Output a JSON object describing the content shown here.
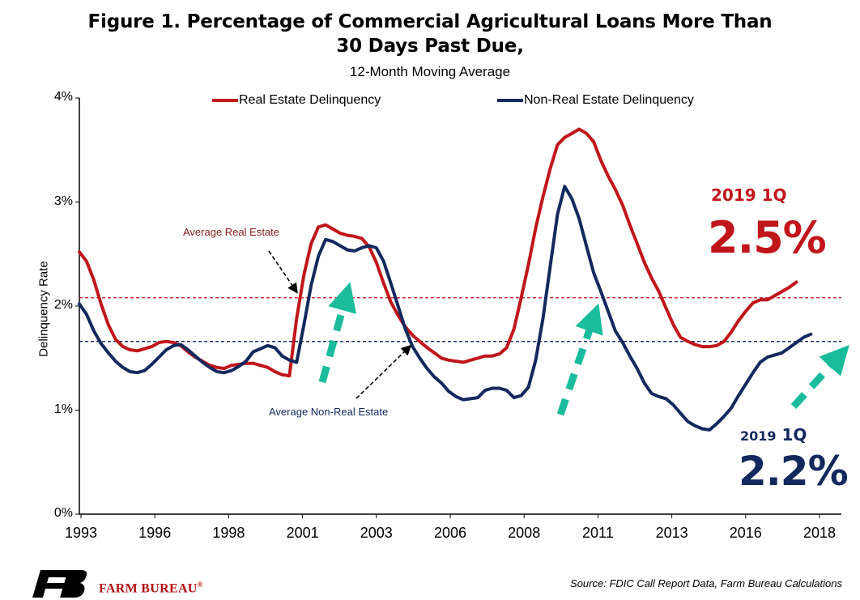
{
  "title_line1": "Figure 1. Percentage of Commercial Agricultural Loans More Than",
  "title_line2": "30 Days Past Due,",
  "subtitle": "12-Month Moving Average",
  "ylabel": "Delinquency Rate",
  "source": "Source: FDIC Call Report Data, Farm Bureau Calculations",
  "brand": {
    "name": "FARM BUREAU",
    "registered": "®",
    "logo_text": "FB",
    "logo_color": "#000000",
    "name_color": "#b30c13"
  },
  "annotations": {
    "avg_real_estate": "Average Real Estate",
    "avg_non_real_estate": "Average Non-Real Estate",
    "re_period": "2019 1Q",
    "re_value": "2.5%",
    "nre_period_year": "2019",
    "nre_period_q": "1Q",
    "nre_value": "2.2%"
  },
  "colors": {
    "real_estate": "#c0161b",
    "non_real_estate": "#13295e",
    "arrows": "#1abc9c"
  },
  "chart_data": {
    "type": "line",
    "title": "Figure 1. Percentage of Commercial Agricultural Loans More Than 30 Days Past Due,",
    "subtitle": "12-Month Moving Average",
    "xlabel": "",
    "ylabel": "Delinquency Rate",
    "x_tick_labels": [
      "1993",
      "1996",
      "1998",
      "2001",
      "2003",
      "2006",
      "2008",
      "2011",
      "2013",
      "2016",
      "2018"
    ],
    "y_tick_labels": [
      "0%",
      "1%",
      "2%",
      "3%",
      "4%"
    ],
    "ylim": [
      0,
      4
    ],
    "xlim": [
      1993.0,
      2019.3
    ],
    "legend_position": "top",
    "grid": false,
    "reference_lines": [
      {
        "label": "Average Real Estate",
        "value": 2.08,
        "style": "dashed",
        "color": "#c0161b"
      },
      {
        "label": "Average Non-Real Estate",
        "value": 1.66,
        "style": "dashed",
        "color": "#13295e"
      }
    ],
    "series": [
      {
        "name": "Real Estate Delinquency",
        "color": "#c0161b",
        "points": [
          [
            1993.0,
            2.52
          ],
          [
            1993.25,
            2.43
          ],
          [
            1993.5,
            2.25
          ],
          [
            1993.75,
            2.02
          ],
          [
            1994.0,
            1.82
          ],
          [
            1994.25,
            1.68
          ],
          [
            1994.5,
            1.61
          ],
          [
            1994.75,
            1.58
          ],
          [
            1995.0,
            1.57
          ],
          [
            1995.25,
            1.59
          ],
          [
            1995.5,
            1.61
          ],
          [
            1995.75,
            1.65
          ],
          [
            1996.0,
            1.66
          ],
          [
            1996.25,
            1.65
          ],
          [
            1996.5,
            1.62
          ],
          [
            1996.75,
            1.56
          ],
          [
            1997.0,
            1.51
          ],
          [
            1997.25,
            1.47
          ],
          [
            1997.5,
            1.43
          ],
          [
            1997.75,
            1.41
          ],
          [
            1998.0,
            1.4
          ],
          [
            1998.25,
            1.43
          ],
          [
            1998.5,
            1.44
          ],
          [
            1998.75,
            1.45
          ],
          [
            1999.0,
            1.45
          ],
          [
            1999.25,
            1.43
          ],
          [
            1999.5,
            1.41
          ],
          [
            1999.75,
            1.37
          ],
          [
            2000.0,
            1.34
          ],
          [
            2000.25,
            1.33
          ],
          [
            2000.5,
            1.88
          ],
          [
            2000.75,
            2.3
          ],
          [
            2001.0,
            2.6
          ],
          [
            2001.25,
            2.76
          ],
          [
            2001.5,
            2.78
          ],
          [
            2001.75,
            2.74
          ],
          [
            2002.0,
            2.7
          ],
          [
            2002.25,
            2.68
          ],
          [
            2002.5,
            2.67
          ],
          [
            2002.75,
            2.65
          ],
          [
            2003.0,
            2.57
          ],
          [
            2003.25,
            2.42
          ],
          [
            2003.5,
            2.22
          ],
          [
            2003.75,
            2.04
          ],
          [
            2004.0,
            1.91
          ],
          [
            2004.25,
            1.8
          ],
          [
            2004.5,
            1.72
          ],
          [
            2004.75,
            1.66
          ],
          [
            2005.0,
            1.6
          ],
          [
            2005.25,
            1.55
          ],
          [
            2005.5,
            1.5
          ],
          [
            2005.75,
            1.48
          ],
          [
            2006.0,
            1.47
          ],
          [
            2006.25,
            1.46
          ],
          [
            2006.5,
            1.48
          ],
          [
            2006.75,
            1.5
          ],
          [
            2007.0,
            1.52
          ],
          [
            2007.25,
            1.52
          ],
          [
            2007.5,
            1.54
          ],
          [
            2007.75,
            1.6
          ],
          [
            2008.0,
            1.78
          ],
          [
            2008.25,
            2.08
          ],
          [
            2008.5,
            2.4
          ],
          [
            2008.75,
            2.75
          ],
          [
            2009.0,
            3.05
          ],
          [
            2009.25,
            3.32
          ],
          [
            2009.5,
            3.55
          ],
          [
            2009.75,
            3.62
          ],
          [
            2010.0,
            3.66
          ],
          [
            2010.25,
            3.7
          ],
          [
            2010.5,
            3.66
          ],
          [
            2010.75,
            3.58
          ],
          [
            2011.0,
            3.4
          ],
          [
            2011.25,
            3.25
          ],
          [
            2011.5,
            3.12
          ],
          [
            2011.75,
            2.97
          ],
          [
            2012.0,
            2.78
          ],
          [
            2012.25,
            2.6
          ],
          [
            2012.5,
            2.42
          ],
          [
            2012.75,
            2.27
          ],
          [
            2013.0,
            2.14
          ],
          [
            2013.25,
            1.98
          ],
          [
            2013.5,
            1.82
          ],
          [
            2013.75,
            1.7
          ],
          [
            2014.0,
            1.66
          ],
          [
            2014.25,
            1.63
          ],
          [
            2014.5,
            1.61
          ],
          [
            2014.75,
            1.61
          ],
          [
            2015.0,
            1.62
          ],
          [
            2015.25,
            1.66
          ],
          [
            2015.5,
            1.75
          ],
          [
            2015.75,
            1.86
          ],
          [
            2016.0,
            1.95
          ],
          [
            2016.25,
            2.03
          ],
          [
            2016.5,
            2.06
          ],
          [
            2016.75,
            2.06
          ],
          [
            2017.0,
            2.1
          ],
          [
            2017.25,
            2.14
          ],
          [
            2017.5,
            2.18
          ],
          [
            2017.75,
            2.23
          ]
        ]
      },
      {
        "name": "Non-Real Estate Delinquency",
        "color": "#13295e",
        "points": [
          [
            1993.0,
            2.02
          ],
          [
            1993.25,
            1.92
          ],
          [
            1993.5,
            1.76
          ],
          [
            1993.75,
            1.64
          ],
          [
            1994.0,
            1.55
          ],
          [
            1994.25,
            1.47
          ],
          [
            1994.5,
            1.41
          ],
          [
            1994.75,
            1.37
          ],
          [
            1995.0,
            1.36
          ],
          [
            1995.25,
            1.38
          ],
          [
            1995.5,
            1.44
          ],
          [
            1995.75,
            1.51
          ],
          [
            1996.0,
            1.58
          ],
          [
            1996.25,
            1.62
          ],
          [
            1996.5,
            1.63
          ],
          [
            1996.75,
            1.58
          ],
          [
            1997.0,
            1.52
          ],
          [
            1997.25,
            1.46
          ],
          [
            1997.5,
            1.41
          ],
          [
            1997.75,
            1.37
          ],
          [
            1998.0,
            1.36
          ],
          [
            1998.25,
            1.38
          ],
          [
            1998.5,
            1.42
          ],
          [
            1998.75,
            1.47
          ],
          [
            1999.0,
            1.56
          ],
          [
            1999.25,
            1.59
          ],
          [
            1999.5,
            1.62
          ],
          [
            1999.75,
            1.6
          ],
          [
            2000.0,
            1.52
          ],
          [
            2000.25,
            1.48
          ],
          [
            2000.5,
            1.46
          ],
          [
            2000.75,
            1.82
          ],
          [
            2001.0,
            2.2
          ],
          [
            2001.25,
            2.48
          ],
          [
            2001.5,
            2.64
          ],
          [
            2001.75,
            2.62
          ],
          [
            2002.0,
            2.58
          ],
          [
            2002.25,
            2.54
          ],
          [
            2002.5,
            2.53
          ],
          [
            2002.75,
            2.56
          ],
          [
            2003.0,
            2.58
          ],
          [
            2003.25,
            2.56
          ],
          [
            2003.5,
            2.43
          ],
          [
            2003.75,
            2.22
          ],
          [
            2004.0,
            2.0
          ],
          [
            2004.25,
            1.78
          ],
          [
            2004.5,
            1.61
          ],
          [
            2004.75,
            1.5
          ],
          [
            2005.0,
            1.4
          ],
          [
            2005.25,
            1.32
          ],
          [
            2005.5,
            1.26
          ],
          [
            2005.75,
            1.18
          ],
          [
            2006.0,
            1.13
          ],
          [
            2006.25,
            1.1
          ],
          [
            2006.5,
            1.11
          ],
          [
            2006.75,
            1.12
          ],
          [
            2007.0,
            1.19
          ],
          [
            2007.25,
            1.21
          ],
          [
            2007.5,
            1.21
          ],
          [
            2007.75,
            1.19
          ],
          [
            2008.0,
            1.12
          ],
          [
            2008.25,
            1.14
          ],
          [
            2008.5,
            1.22
          ],
          [
            2008.75,
            1.48
          ],
          [
            2009.0,
            1.88
          ],
          [
            2009.25,
            2.38
          ],
          [
            2009.5,
            2.88
          ],
          [
            2009.75,
            3.15
          ],
          [
            2010.0,
            3.03
          ],
          [
            2010.25,
            2.84
          ],
          [
            2010.5,
            2.58
          ],
          [
            2010.75,
            2.32
          ],
          [
            2011.0,
            2.14
          ],
          [
            2011.25,
            1.95
          ],
          [
            2011.5,
            1.76
          ],
          [
            2011.75,
            1.65
          ],
          [
            2012.0,
            1.52
          ],
          [
            2012.25,
            1.4
          ],
          [
            2012.5,
            1.26
          ],
          [
            2012.75,
            1.16
          ],
          [
            2013.0,
            1.13
          ],
          [
            2013.25,
            1.11
          ],
          [
            2013.5,
            1.05
          ],
          [
            2013.75,
            0.97
          ],
          [
            2014.0,
            0.89
          ],
          [
            2014.25,
            0.85
          ],
          [
            2014.5,
            0.82
          ],
          [
            2014.75,
            0.81
          ],
          [
            2015.0,
            0.87
          ],
          [
            2015.25,
            0.94
          ],
          [
            2015.5,
            1.02
          ],
          [
            2015.75,
            1.14
          ],
          [
            2016.0,
            1.25
          ],
          [
            2016.25,
            1.36
          ],
          [
            2016.5,
            1.46
          ],
          [
            2016.75,
            1.51
          ],
          [
            2017.0,
            1.53
          ],
          [
            2017.25,
            1.55
          ],
          [
            2017.5,
            1.6
          ],
          [
            2017.75,
            1.65
          ],
          [
            2018.0,
            1.7
          ],
          [
            2018.25,
            1.73
          ]
        ]
      }
    ]
  }
}
